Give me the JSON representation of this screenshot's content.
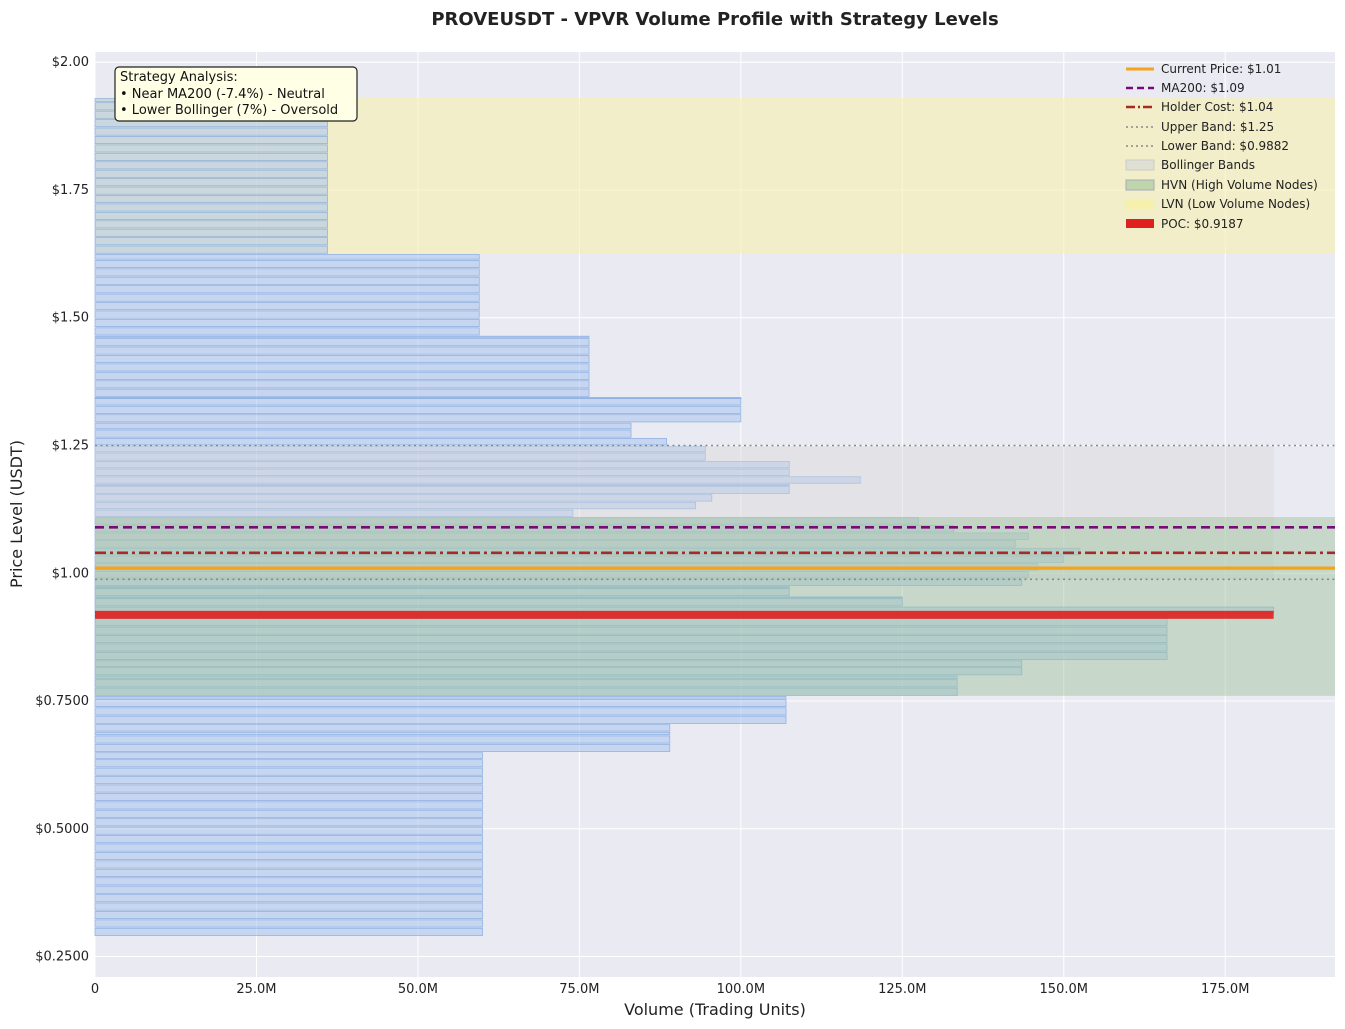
{
  "chart_data": {
    "type": "bar",
    "orientation": "horizontal",
    "title": "PROVEUSDT - VPVR Volume Profile with Strategy Levels",
    "xlabel": "Volume (Trading Units)",
    "ylabel": "Price Level (USDT)",
    "xlim": [
      0,
      192000000
    ],
    "ylim": [
      0.21,
      2.02
    ],
    "grid": true,
    "legend_position": "top-right",
    "x_ticks": [
      {
        "value": 0,
        "label": "0"
      },
      {
        "value": 25000000,
        "label": "25.0M"
      },
      {
        "value": 50000000,
        "label": "50.0M"
      },
      {
        "value": 75000000,
        "label": "75.0M"
      },
      {
        "value": 100000000,
        "label": "100.0M"
      },
      {
        "value": 125000000,
        "label": "125.0M"
      },
      {
        "value": 150000000,
        "label": "150.0M"
      },
      {
        "value": 175000000,
        "label": "175.0M"
      }
    ],
    "y_ticks": [
      {
        "value": 2.0,
        "label": "$2.00"
      },
      {
        "value": 1.75,
        "label": "$1.75"
      },
      {
        "value": 1.5,
        "label": "$1.50"
      },
      {
        "value": 1.25,
        "label": "$1.25"
      },
      {
        "value": 1.0,
        "label": "$1.00"
      },
      {
        "value": 0.75,
        "label": "$0.7500"
      },
      {
        "value": 0.5,
        "label": "$0.5000"
      },
      {
        "value": 0.25,
        "label": "$0.2500"
      }
    ],
    "bin_size": 0.0165,
    "profile_bins": [
      {
        "price_range": [
          0.29,
          0.65
        ],
        "volume": 60000000
      },
      {
        "price_range": [
          0.65,
          0.69
        ],
        "volume": 89000000
      },
      {
        "price_range": [
          0.69,
          0.705
        ],
        "volume": 89000000
      },
      {
        "price_range": [
          0.705,
          0.76
        ],
        "volume": 107000000
      },
      {
        "price_range": [
          0.76,
          0.8
        ],
        "volume": 133500000
      },
      {
        "price_range": [
          0.8,
          0.83
        ],
        "volume": 143500000
      },
      {
        "price_range": [
          0.83,
          0.92
        ],
        "volume": 166000000
      },
      {
        "price_range": [
          0.92,
          0.935
        ],
        "volume": 182500000
      },
      {
        "price_range": [
          0.935,
          0.955
        ],
        "volume": 125000000
      },
      {
        "price_range": [
          0.955,
          0.975
        ],
        "volume": 107500000
      },
      {
        "price_range": [
          0.975,
          0.99
        ],
        "volume": 143500000
      },
      {
        "price_range": [
          0.99,
          1.005
        ],
        "volume": 144500000
      },
      {
        "price_range": [
          1.005,
          1.02
        ],
        "volume": 146000000
      },
      {
        "price_range": [
          1.02,
          1.035
        ],
        "volume": 150000000
      },
      {
        "price_range": [
          1.035,
          1.05
        ],
        "volume": 152500000
      },
      {
        "price_range": [
          1.05,
          1.065
        ],
        "volume": 142500000
      },
      {
        "price_range": [
          1.065,
          1.08
        ],
        "volume": 144500000
      },
      {
        "price_range": [
          1.08,
          1.095
        ],
        "volume": 133000000
      },
      {
        "price_range": [
          1.095,
          1.11
        ],
        "volume": 127500000
      },
      {
        "price_range": [
          1.11,
          1.125
        ],
        "volume": 74000000
      },
      {
        "price_range": [
          1.125,
          1.14
        ],
        "volume": 93000000
      },
      {
        "price_range": [
          1.14,
          1.155
        ],
        "volume": 95500000
      },
      {
        "price_range": [
          1.155,
          1.175
        ],
        "volume": 107500000
      },
      {
        "price_range": [
          1.175,
          1.19
        ],
        "volume": 118500000
      },
      {
        "price_range": [
          1.19,
          1.205
        ],
        "volume": 107500000
      },
      {
        "price_range": [
          1.205,
          1.22
        ],
        "volume": 107500000
      },
      {
        "price_range": [
          1.22,
          1.25
        ],
        "volume": 94500000
      },
      {
        "price_range": [
          1.25,
          1.265
        ],
        "volume": 88500000
      },
      {
        "price_range": [
          1.265,
          1.295
        ],
        "volume": 83000000
      },
      {
        "price_range": [
          1.295,
          1.345
        ],
        "volume": 100000000
      },
      {
        "price_range": [
          1.345,
          1.465
        ],
        "volume": 76500000
      },
      {
        "price_range": [
          1.465,
          1.625
        ],
        "volume": 59500000
      },
      {
        "price_range": [
          1.625,
          1.93
        ],
        "volume": 36000000
      }
    ],
    "lines": [
      {
        "name": "Current Price: $1.01",
        "value": 1.01,
        "color": "#f5a31a",
        "style": "solid"
      },
      {
        "name": "MA200: $1.09",
        "value": 1.09,
        "color": "#7a0a7a",
        "style": "dashed"
      },
      {
        "name": "Holder Cost: $1.04",
        "value": 1.04,
        "color": "#a52a2a",
        "style": "dashdot"
      },
      {
        "name": "Upper Band: $1.25",
        "value": 1.25,
        "color": "#888888",
        "style": "dotted"
      },
      {
        "name": "Lower Band: $0.9882",
        "value": 0.9882,
        "color": "#888888",
        "style": "dotted"
      }
    ],
    "zones": [
      {
        "name": "Bollinger Bands",
        "range": [
          0.9882,
          1.25
        ],
        "x_extent": 182500000,
        "color": "#d8d8d8"
      },
      {
        "name": "HVN (High Volume Nodes)",
        "range": [
          0.76,
          1.11
        ],
        "color": "#9ec49a"
      },
      {
        "name": "LVN (Low Volume Nodes)",
        "range": [
          1.625,
          1.93
        ],
        "color": "#f5f0a8"
      }
    ],
    "poc": {
      "name": "POC: $0.9187",
      "value": 0.9187,
      "volume": 182500000,
      "color": "#e02020"
    },
    "annotation": {
      "lines": [
        "Strategy Analysis:",
        "• Near MA200 (-7.4%) - Neutral",
        "• Lower Bollinger (7%) - Oversold"
      ]
    }
  }
}
